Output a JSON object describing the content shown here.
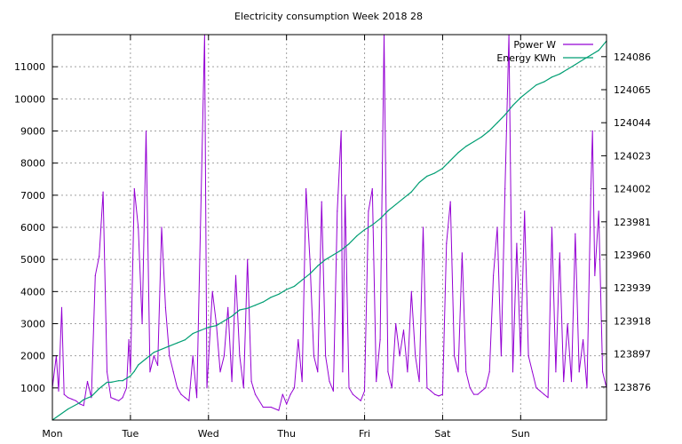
{
  "chart_data": {
    "type": "line",
    "title": "Electricity consumption Week 2018 28",
    "x_labels": [
      "Mon",
      "Tue",
      "Wed",
      "Thu",
      "Fri",
      "Sat",
      "Sun"
    ],
    "y_left_ticks": [
      1000,
      2000,
      3000,
      4000,
      5000,
      6000,
      7000,
      8000,
      9000,
      10000,
      11000
    ],
    "y_left_range": [
      0,
      12000
    ],
    "y_right_ticks": [
      123876,
      123897,
      123918,
      123939,
      123960,
      123981,
      124002,
      124023,
      124044,
      124065,
      124086
    ],
    "y_right_range": [
      123855,
      124100
    ],
    "x_range": [
      0,
      7.1
    ],
    "grid": true,
    "legend_position": "top-right",
    "series": [
      {
        "name": "Power W",
        "axis": "left",
        "color": "#9400d3",
        "points": [
          [
            0.0,
            1000
          ],
          [
            0.05,
            2000
          ],
          [
            0.08,
            900
          ],
          [
            0.12,
            3500
          ],
          [
            0.15,
            800
          ],
          [
            0.2,
            700
          ],
          [
            0.25,
            650
          ],
          [
            0.3,
            600
          ],
          [
            0.35,
            500
          ],
          [
            0.4,
            450
          ],
          [
            0.45,
            1200
          ],
          [
            0.5,
            700
          ],
          [
            0.55,
            4500
          ],
          [
            0.6,
            5100
          ],
          [
            0.65,
            7100
          ],
          [
            0.7,
            1500
          ],
          [
            0.75,
            700
          ],
          [
            0.8,
            650
          ],
          [
            0.85,
            600
          ],
          [
            0.9,
            700
          ],
          [
            0.95,
            1000
          ],
          [
            0.98,
            2500
          ],
          [
            1.0,
            1500
          ],
          [
            1.05,
            7200
          ],
          [
            1.1,
            6000
          ],
          [
            1.15,
            3000
          ],
          [
            1.2,
            9000
          ],
          [
            1.25,
            1500
          ],
          [
            1.3,
            2000
          ],
          [
            1.35,
            1700
          ],
          [
            1.4,
            6000
          ],
          [
            1.45,
            3500
          ],
          [
            1.5,
            2000
          ],
          [
            1.55,
            1500
          ],
          [
            1.6,
            1000
          ],
          [
            1.65,
            800
          ],
          [
            1.7,
            700
          ],
          [
            1.75,
            600
          ],
          [
            1.8,
            2000
          ],
          [
            1.85,
            700
          ],
          [
            1.95,
            12000
          ],
          [
            1.98,
            1000
          ],
          [
            2.05,
            4000
          ],
          [
            2.1,
            3000
          ],
          [
            2.15,
            1500
          ],
          [
            2.2,
            2000
          ],
          [
            2.25,
            3500
          ],
          [
            2.3,
            1200
          ],
          [
            2.35,
            4500
          ],
          [
            2.4,
            2000
          ],
          [
            2.45,
            1000
          ],
          [
            2.5,
            5000
          ],
          [
            2.55,
            1200
          ],
          [
            2.6,
            800
          ],
          [
            2.7,
            400
          ],
          [
            2.8,
            400
          ],
          [
            2.9,
            300
          ],
          [
            2.95,
            800
          ],
          [
            3.0,
            500
          ],
          [
            3.05,
            800
          ],
          [
            3.1,
            1000
          ],
          [
            3.15,
            2500
          ],
          [
            3.2,
            1200
          ],
          [
            3.25,
            7200
          ],
          [
            3.3,
            5000
          ],
          [
            3.35,
            2000
          ],
          [
            3.4,
            1500
          ],
          [
            3.45,
            6800
          ],
          [
            3.5,
            2000
          ],
          [
            3.55,
            1200
          ],
          [
            3.6,
            900
          ],
          [
            3.65,
            6500
          ],
          [
            3.7,
            9000
          ],
          [
            3.72,
            1500
          ],
          [
            3.75,
            7000
          ],
          [
            3.8,
            1000
          ],
          [
            3.85,
            800
          ],
          [
            3.9,
            700
          ],
          [
            3.95,
            600
          ],
          [
            4.0,
            900
          ],
          [
            4.05,
            6500
          ],
          [
            4.1,
            7200
          ],
          [
            4.15,
            1200
          ],
          [
            4.2,
            2500
          ],
          [
            4.25,
            12000
          ],
          [
            4.3,
            1500
          ],
          [
            4.35,
            1000
          ],
          [
            4.4,
            3000
          ],
          [
            4.45,
            2000
          ],
          [
            4.5,
            2800
          ],
          [
            4.55,
            1500
          ],
          [
            4.6,
            4000
          ],
          [
            4.65,
            2000
          ],
          [
            4.7,
            1200
          ],
          [
            4.75,
            6000
          ],
          [
            4.8,
            1000
          ],
          [
            4.85,
            900
          ],
          [
            4.9,
            800
          ],
          [
            4.95,
            750
          ],
          [
            5.0,
            800
          ],
          [
            5.05,
            5500
          ],
          [
            5.1,
            6800
          ],
          [
            5.15,
            2000
          ],
          [
            5.2,
            1500
          ],
          [
            5.25,
            5200
          ],
          [
            5.3,
            1500
          ],
          [
            5.35,
            1000
          ],
          [
            5.4,
            800
          ],
          [
            5.45,
            800
          ],
          [
            5.5,
            900
          ],
          [
            5.55,
            1000
          ],
          [
            5.6,
            1500
          ],
          [
            5.65,
            4500
          ],
          [
            5.7,
            6000
          ],
          [
            5.75,
            2000
          ],
          [
            5.8,
            7200
          ],
          [
            5.85,
            12000
          ],
          [
            5.9,
            1500
          ],
          [
            5.95,
            5500
          ],
          [
            6.0,
            2000
          ],
          [
            6.05,
            6500
          ],
          [
            6.1,
            2000
          ],
          [
            6.15,
            1500
          ],
          [
            6.2,
            1000
          ],
          [
            6.25,
            900
          ],
          [
            6.3,
            800
          ],
          [
            6.35,
            700
          ],
          [
            6.4,
            6000
          ],
          [
            6.45,
            1500
          ],
          [
            6.5,
            5200
          ],
          [
            6.55,
            1200
          ],
          [
            6.6,
            3000
          ],
          [
            6.65,
            1200
          ],
          [
            6.7,
            5800
          ],
          [
            6.75,
            1500
          ],
          [
            6.8,
            2500
          ],
          [
            6.85,
            1000
          ],
          [
            6.9,
            7200
          ],
          [
            6.92,
            9000
          ],
          [
            6.95,
            4500
          ],
          [
            7.0,
            6500
          ],
          [
            7.05,
            1500
          ],
          [
            7.1,
            1000
          ]
        ]
      },
      {
        "name": "Energy KWh",
        "axis": "right",
        "color": "#009e73",
        "points": [
          [
            0.0,
            123855
          ],
          [
            0.2,
            123862
          ],
          [
            0.35,
            123866
          ],
          [
            0.4,
            123868
          ],
          [
            0.5,
            123870
          ],
          [
            0.6,
            123875
          ],
          [
            0.7,
            123879
          ],
          [
            0.75,
            123879
          ],
          [
            0.85,
            123880
          ],
          [
            0.9,
            123880
          ],
          [
            1.0,
            123883
          ],
          [
            1.05,
            123886
          ],
          [
            1.1,
            123890
          ],
          [
            1.2,
            123894
          ],
          [
            1.3,
            123898
          ],
          [
            1.5,
            123902
          ],
          [
            1.6,
            123904
          ],
          [
            1.7,
            123906
          ],
          [
            1.8,
            123910
          ],
          [
            1.9,
            123912
          ],
          [
            2.0,
            123914
          ],
          [
            2.1,
            123915
          ],
          [
            2.2,
            123918
          ],
          [
            2.3,
            123921
          ],
          [
            2.35,
            123923
          ],
          [
            2.4,
            123925
          ],
          [
            2.5,
            123926
          ],
          [
            2.6,
            123928
          ],
          [
            2.7,
            123930
          ],
          [
            2.8,
            123933
          ],
          [
            2.9,
            123935
          ],
          [
            3.0,
            123938
          ],
          [
            3.1,
            123940
          ],
          [
            3.2,
            123944
          ],
          [
            3.3,
            123948
          ],
          [
            3.4,
            123953
          ],
          [
            3.5,
            123957
          ],
          [
            3.6,
            123960
          ],
          [
            3.7,
            123963
          ],
          [
            3.8,
            123967
          ],
          [
            3.9,
            123972
          ],
          [
            4.0,
            123976
          ],
          [
            4.1,
            123979
          ],
          [
            4.2,
            123983
          ],
          [
            4.3,
            123988
          ],
          [
            4.4,
            123992
          ],
          [
            4.5,
            123996
          ],
          [
            4.6,
            124000
          ],
          [
            4.7,
            124006
          ],
          [
            4.8,
            124010
          ],
          [
            4.9,
            124012
          ],
          [
            5.0,
            124015
          ],
          [
            5.1,
            124020
          ],
          [
            5.2,
            124025
          ],
          [
            5.3,
            124029
          ],
          [
            5.4,
            124032
          ],
          [
            5.5,
            124035
          ],
          [
            5.6,
            124039
          ],
          [
            5.7,
            124044
          ],
          [
            5.8,
            124049
          ],
          [
            5.9,
            124055
          ],
          [
            6.0,
            124060
          ],
          [
            6.1,
            124064
          ],
          [
            6.2,
            124068
          ],
          [
            6.3,
            124070
          ],
          [
            6.4,
            124073
          ],
          [
            6.5,
            124075
          ],
          [
            6.6,
            124078
          ],
          [
            6.7,
            124081
          ],
          [
            6.8,
            124084
          ],
          [
            6.9,
            124087
          ],
          [
            7.0,
            124090
          ],
          [
            7.1,
            124096
          ]
        ]
      }
    ]
  }
}
